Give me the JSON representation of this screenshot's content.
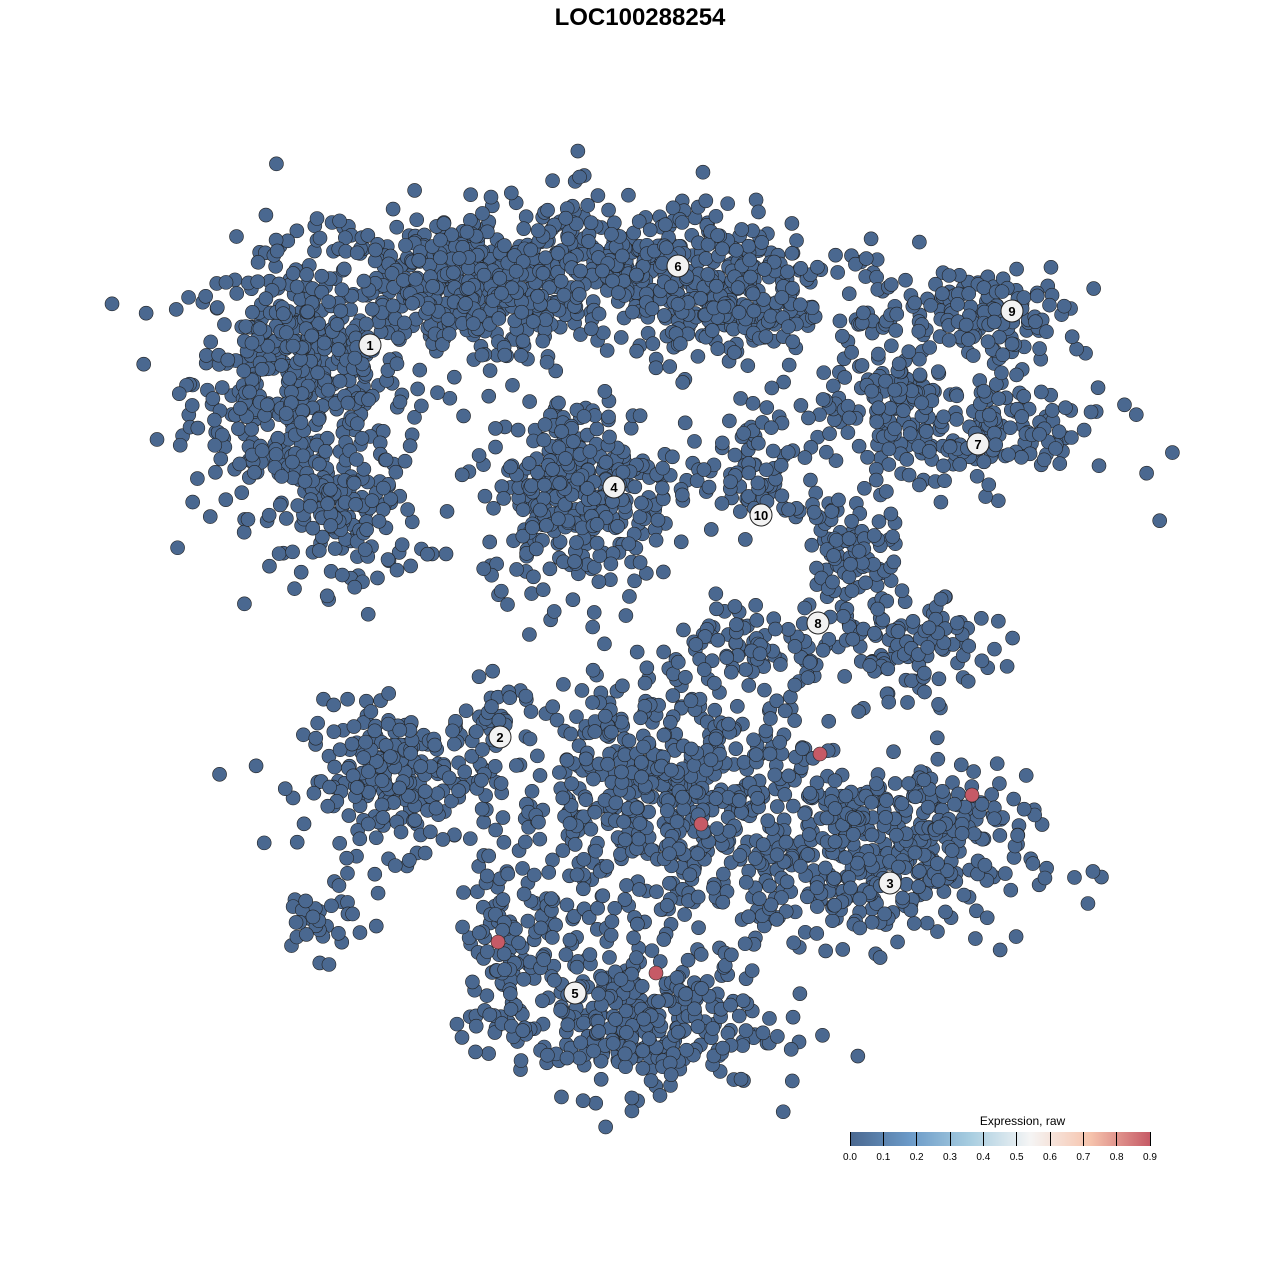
{
  "chart_data": {
    "type": "scatter",
    "title": "LOC100288254",
    "xlabel": "",
    "ylabel": "",
    "xlim": [
      -45,
      50
    ],
    "ylim": [
      -46,
      46
    ],
    "grid": false,
    "point_color_low": "#4a6890",
    "point_color_high": "#c65a66",
    "point_stroke": "#222222",
    "clusters": [
      {
        "label": "1",
        "center": [
          -27,
          29.5
        ],
        "blobs": [
          [
            -34,
            26,
            9,
            11,
            500
          ],
          [
            -19,
            35,
            11,
            6,
            350
          ],
          [
            -29,
            12,
            6,
            6,
            120
          ]
        ]
      },
      {
        "label": "2",
        "center": [
          -14,
          -9.7
        ],
        "blobs": [
          [
            -24,
            -14,
            8,
            6,
            250
          ],
          [
            -32,
            -28,
            4,
            3,
            30
          ],
          [
            -14,
            -8,
            3,
            3,
            30
          ]
        ]
      },
      {
        "label": "3",
        "center": [
          25,
          -24.3
        ],
        "blobs": [
          [
            23,
            -22,
            13,
            7,
            350
          ],
          [
            28,
            -17,
            7,
            4,
            80
          ]
        ]
      },
      {
        "label": "4",
        "center": [
          -2.6,
          15.3
        ],
        "blobs": [
          [
            -6,
            15,
            8,
            8,
            350
          ]
        ]
      },
      {
        "label": "5",
        "center": [
          -6.5,
          -35.3
        ],
        "blobs": [
          [
            -2,
            -38,
            12,
            6,
            350
          ],
          [
            -12,
            -28,
            5,
            6,
            80
          ]
        ]
      },
      {
        "label": "6",
        "center": [
          3.8,
          37.4
        ],
        "blobs": [
          [
            -2,
            37,
            17,
            6,
            500
          ],
          [
            11,
            33,
            9,
            4,
            150
          ]
        ]
      },
      {
        "label": "7",
        "center": [
          33.8,
          19.6
        ],
        "blobs": [
          [
            32,
            21,
            13,
            5,
            220
          ],
          [
            24,
            25,
            5,
            4,
            60
          ]
        ]
      },
      {
        "label": "8",
        "center": [
          17.8,
          1.7
        ],
        "blobs": [
          [
            21,
            8,
            4,
            6,
            100
          ],
          [
            28,
            -1,
            6,
            4,
            100
          ],
          [
            12,
            0,
            8,
            3,
            80
          ],
          [
            3,
            -16,
            13,
            11,
            600
          ]
        ]
      },
      {
        "label": "9",
        "center": [
          37.2,
          32.9
        ],
        "blobs": [
          [
            34,
            33,
            9,
            4,
            150
          ]
        ]
      },
      {
        "label": "10",
        "center": [
          12.1,
          12.5
        ],
        "blobs": [
          [
            12,
            17,
            6,
            5,
            80
          ]
        ]
      }
    ],
    "high_expression_points": [
      {
        "x": 6.1,
        "y": -18.4,
        "value": 0.9
      },
      {
        "x": 18.0,
        "y": -11.4,
        "value": 0.9
      },
      {
        "x": 33.2,
        "y": -15.5,
        "value": 0.9
      },
      {
        "x": -14.2,
        "y": -30.2,
        "value": 0.9
      },
      {
        "x": 1.6,
        "y": -33.3,
        "value": 0.9
      }
    ],
    "colorbar": {
      "title": "Expression, raw",
      "ticks": [
        "0.0",
        "0.1",
        "0.2",
        "0.3",
        "0.4",
        "0.5",
        "0.6",
        "0.7",
        "0.8",
        "0.9"
      ],
      "range": [
        0,
        0.9
      ],
      "colors": [
        "#4a6890",
        "#6b9ac8",
        "#a7cde0",
        "#f5f5f5",
        "#f6c4ad",
        "#c65a66"
      ]
    }
  }
}
